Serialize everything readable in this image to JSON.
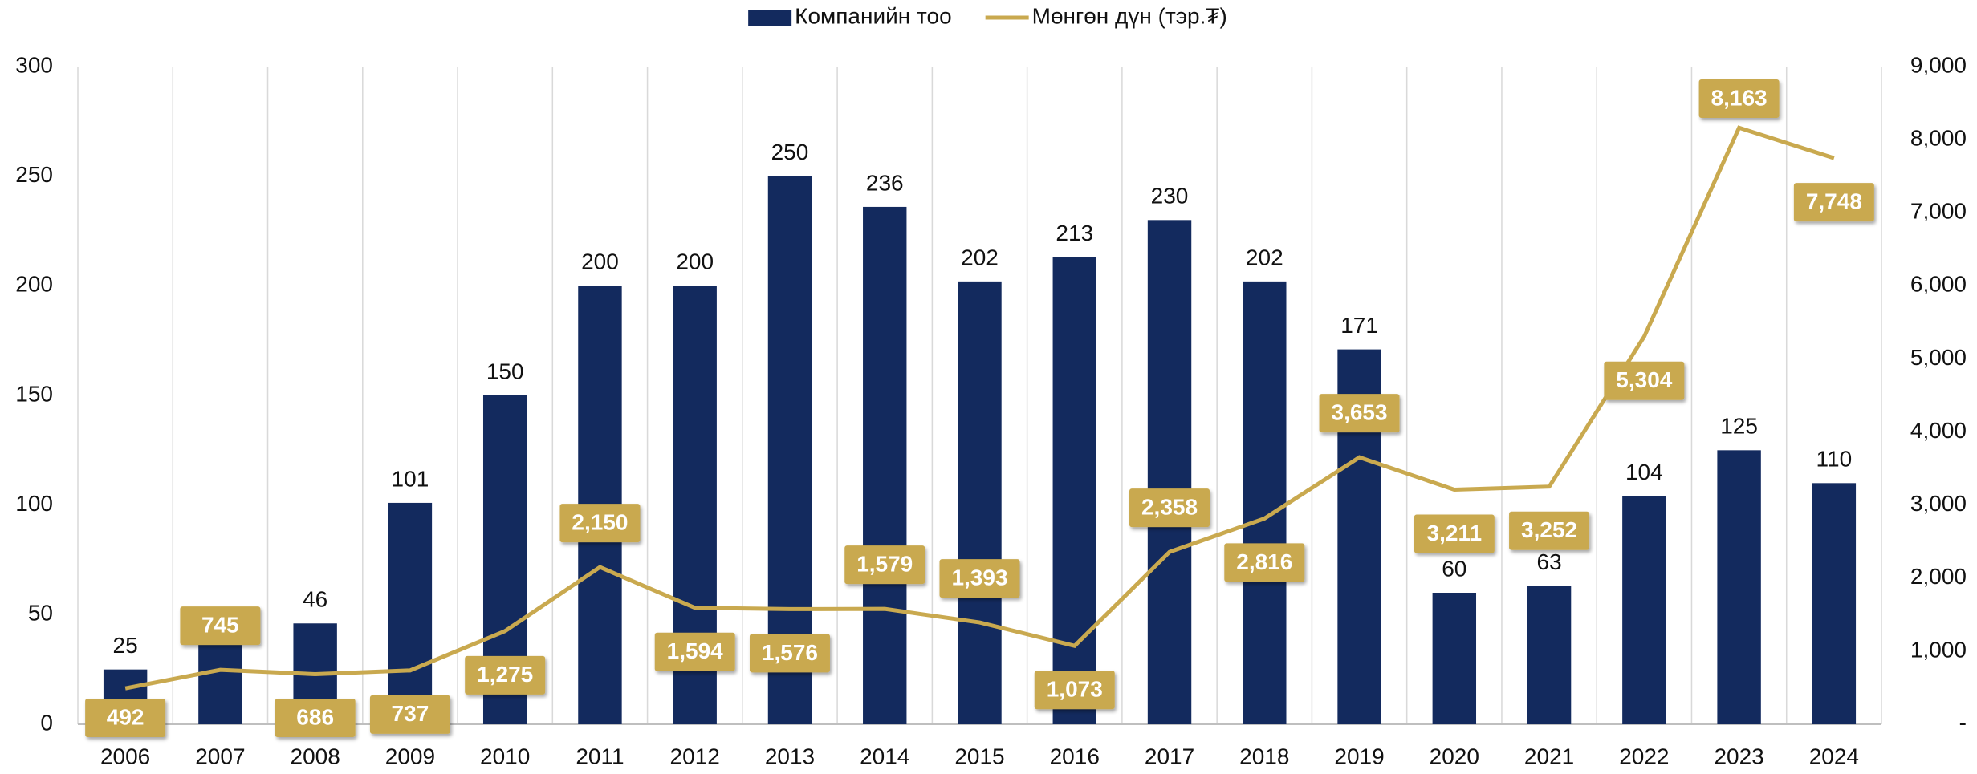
{
  "chart_data": {
    "type": "bar",
    "categories": [
      "2006",
      "2007",
      "2008",
      "2009",
      "2010",
      "2011",
      "2012",
      "2013",
      "2014",
      "2015",
      "2016",
      "2017",
      "2018",
      "2019",
      "2020",
      "2021",
      "2022",
      "2023",
      "2024"
    ],
    "series": [
      {
        "name": "Компанийн тоо",
        "color": "#132a5e",
        "values": [
          25,
          38,
          46,
          101,
          150,
          200,
          200,
          250,
          236,
          202,
          213,
          230,
          202,
          171,
          60,
          63,
          104,
          125,
          110
        ]
      },
      {
        "name": "Мөнгөн дүн (тэр.₮)",
        "color": "#c9a94f",
        "axis": "y2",
        "type": "line",
        "values": [
          492,
          745,
          686,
          737,
          1275,
          2150,
          1594,
          1576,
          1579,
          1393,
          1073,
          2358,
          2816,
          3653,
          3211,
          3252,
          5304,
          8163,
          7748
        ],
        "value_labels": [
          "492",
          "745",
          "686",
          "737",
          "1,275",
          "2,150",
          "1,594",
          "1,576",
          "1,579",
          "1,393",
          "1,073",
          "2,358",
          "2,816",
          "3,653",
          "3,211",
          "3,252",
          "5,304",
          "8,163",
          "7,748"
        ]
      }
    ],
    "ylim": [
      0,
      300
    ],
    "yticks": [
      0,
      50,
      100,
      150,
      200,
      250,
      300
    ],
    "y2lim": [
      0,
      9000
    ],
    "y2ticks": [
      {
        "value": 0,
        "label": "-"
      },
      {
        "value": 1000,
        "label": "1,000"
      },
      {
        "value": 2000,
        "label": "2,000"
      },
      {
        "value": 3000,
        "label": "3,000"
      },
      {
        "value": 4000,
        "label": "4,000"
      },
      {
        "value": 5000,
        "label": "5,000"
      },
      {
        "value": 6000,
        "label": "6,000"
      },
      {
        "value": 7000,
        "label": "7,000"
      },
      {
        "value": 8000,
        "label": "8,000"
      },
      {
        "value": 9000,
        "label": "9,000"
      }
    ],
    "legend": "top"
  }
}
